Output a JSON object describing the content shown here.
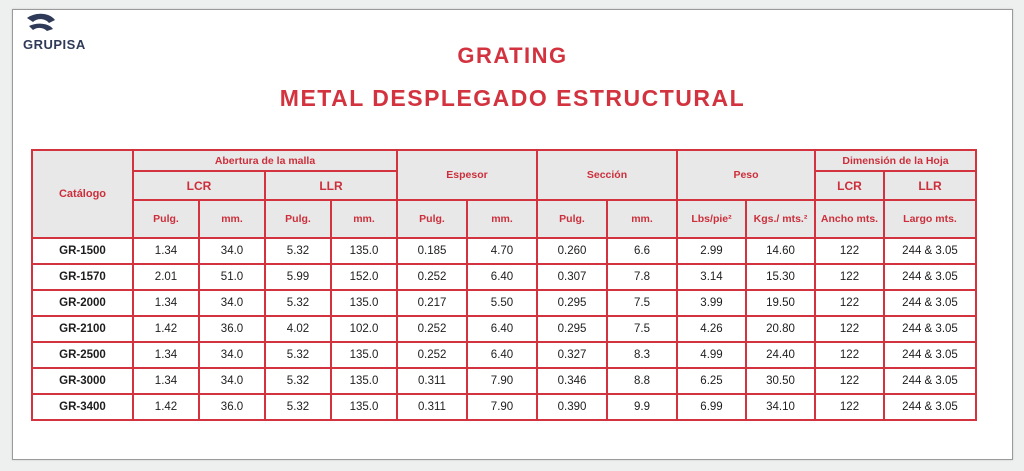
{
  "brand": {
    "logo_text": "GRUPISA",
    "logo_color": "#2e3a57"
  },
  "titles": {
    "line1": "GRATING",
    "line2": "METAL DESPLEGADO ESTRUCTURAL",
    "color": "#d2333f"
  },
  "table": {
    "headers": {
      "catalogo": "Catálogo",
      "abertura": "Abertura de la malla",
      "lcr": "LCR",
      "llr": "LLR",
      "espesor": "Espesor",
      "seccion": "Sección",
      "peso": "Peso",
      "dimension": "Dimensión de la Hoja",
      "dim_lcr": "LCR",
      "dim_llr": "LLR",
      "pulg": "Pulg.",
      "mm": "mm.",
      "lbs_pie": "Lbs/pie²",
      "kgs_mts": "Kgs./ mts.²",
      "ancho": "Ancho mts.",
      "largo": "Largo mts."
    },
    "rows": [
      {
        "catalogo": "GR-1500",
        "lcr_pulg": "1.34",
        "lcr_mm": "34.0",
        "llr_pulg": "5.32",
        "llr_mm": "135.0",
        "esp_pulg": "0.185",
        "esp_mm": "4.70",
        "sec_pulg": "0.260",
        "sec_mm": "6.6",
        "lbs": "2.99",
        "kgs": "14.60",
        "ancho": "122",
        "largo": "244 & 3.05"
      },
      {
        "catalogo": "GR-1570",
        "lcr_pulg": "2.01",
        "lcr_mm": "51.0",
        "llr_pulg": "5.99",
        "llr_mm": "152.0",
        "esp_pulg": "0.252",
        "esp_mm": "6.40",
        "sec_pulg": "0.307",
        "sec_mm": "7.8",
        "lbs": "3.14",
        "kgs": "15.30",
        "ancho": "122",
        "largo": "244 & 3.05"
      },
      {
        "catalogo": "GR-2000",
        "lcr_pulg": "1.34",
        "lcr_mm": "34.0",
        "llr_pulg": "5.32",
        "llr_mm": "135.0",
        "esp_pulg": "0.217",
        "esp_mm": "5.50",
        "sec_pulg": "0.295",
        "sec_mm": "7.5",
        "lbs": "3.99",
        "kgs": "19.50",
        "ancho": "122",
        "largo": "244 & 3.05"
      },
      {
        "catalogo": "GR-2100",
        "lcr_pulg": "1.42",
        "lcr_mm": "36.0",
        "llr_pulg": "4.02",
        "llr_mm": "102.0",
        "esp_pulg": "0.252",
        "esp_mm": "6.40",
        "sec_pulg": "0.295",
        "sec_mm": "7.5",
        "lbs": "4.26",
        "kgs": "20.80",
        "ancho": "122",
        "largo": "244 & 3.05"
      },
      {
        "catalogo": "GR-2500",
        "lcr_pulg": "1.34",
        "lcr_mm": "34.0",
        "llr_pulg": "5.32",
        "llr_mm": "135.0",
        "esp_pulg": "0.252",
        "esp_mm": "6.40",
        "sec_pulg": "0.327",
        "sec_mm": "8.3",
        "lbs": "4.99",
        "kgs": "24.40",
        "ancho": "122",
        "largo": "244 & 3.05"
      },
      {
        "catalogo": "GR-3000",
        "lcr_pulg": "1.34",
        "lcr_mm": "34.0",
        "llr_pulg": "5.32",
        "llr_mm": "135.0",
        "esp_pulg": "0.311",
        "esp_mm": "7.90",
        "sec_pulg": "0.346",
        "sec_mm": "8.8",
        "lbs": "6.25",
        "kgs": "30.50",
        "ancho": "122",
        "largo": "244 & 3.05"
      },
      {
        "catalogo": "GR-3400",
        "lcr_pulg": "1.42",
        "lcr_mm": "36.0",
        "llr_pulg": "5.32",
        "llr_mm": "135.0",
        "esp_pulg": "0.311",
        "esp_mm": "7.90",
        "sec_pulg": "0.390",
        "sec_mm": "9.9",
        "lbs": "6.99",
        "kgs": "34.10",
        "ancho": "122",
        "largo": "244 & 3.05"
      }
    ]
  }
}
